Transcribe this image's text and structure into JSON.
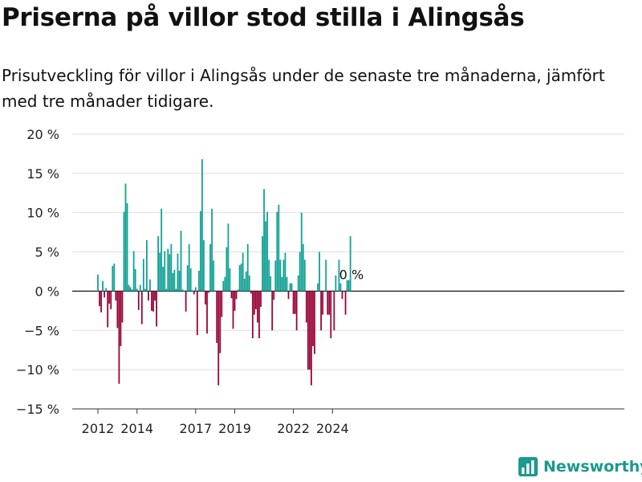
{
  "title": "Priserna på villor stod stilla i Alingsås",
  "subtitle": "Prisutveckling för villor i Alingsås under de senaste tre månaderna, jämfört med tre månader tidigare.",
  "brand": {
    "name": "Newsworthy"
  },
  "colors": {
    "positive": "#13a195",
    "negative": "#990538",
    "grid": "#dddddd",
    "zero_line": "#222222",
    "brand": "#1a9a8e"
  },
  "chart_data": {
    "type": "bar",
    "title": "Priserna på villor stod stilla i Alingsås",
    "subtitle": "Prisutveckling för villor i Alingsås under de senaste tre månaderna, jämfört med tre månader tidigare.",
    "ylim": [
      -15,
      20
    ],
    "yticks": [
      -15,
      -10,
      -5,
      0,
      5,
      10,
      15,
      20
    ],
    "ytick_labels": [
      "−15 %",
      "−10 %",
      "−5 %",
      "0 %",
      "5 %",
      "10 %",
      "15 %",
      "20 %"
    ],
    "x_start": "2012-01",
    "xticks": [
      "2012",
      "2014",
      "2017",
      "2019",
      "2022",
      "2024"
    ],
    "xtick_positions": [
      "2012-01",
      "2014-01",
      "2017-01",
      "2019-01",
      "2022-01",
      "2024-01"
    ],
    "grid": true,
    "last_label": "0 %",
    "values": [
      2.1,
      -1.9,
      -2.7,
      1.3,
      -0.8,
      0.4,
      -4.6,
      -1.6,
      -2.3,
      3.2,
      3.5,
      -1.2,
      -4.7,
      -11.8,
      -7.0,
      -4.0,
      10.1,
      13.7,
      11.2,
      0.8,
      0.5,
      0.2,
      5.1,
      2.8,
      0.3,
      -2.4,
      0.8,
      -4.2,
      4.1,
      0.3,
      6.5,
      -1.2,
      1.5,
      -2.5,
      -2.6,
      -1.2,
      -4.5,
      7.0,
      4.9,
      10.5,
      3.1,
      5.1,
      0.3,
      5.4,
      4.7,
      6.0,
      2.3,
      2.7,
      0.3,
      4.8,
      2.6,
      7.7,
      0.2,
      0.1,
      -2.6,
      3.3,
      6.0,
      2.9,
      0.1,
      -0.4,
      0.5,
      -5.6,
      2.6,
      10.2,
      16.8,
      6.5,
      -1.7,
      -5.4,
      -0.2,
      6.0,
      10.5,
      3.9,
      0.1,
      -6.6,
      -12.0,
      -7.9,
      -3.3,
      1.3,
      1.8,
      5.6,
      8.6,
      2.9,
      -0.9,
      -4.8,
      -2.5,
      -1.0,
      0.2,
      3.3,
      3.5,
      4.9,
      1.6,
      2.5,
      6.0,
      2.0,
      -0.3,
      -6.0,
      -3.0,
      -2.3,
      -4.0,
      -6.0,
      -2.0,
      7.0,
      13.0,
      8.9,
      10.1,
      4.0,
      1.9,
      -5.0,
      -1.1,
      3.9,
      10.1,
      11.0,
      4.0,
      1.8,
      4.0,
      4.9,
      1.8,
      -1.0,
      1.0,
      1.0,
      -2.9,
      -2.9,
      -5.0,
      2.0,
      5.0,
      10.0,
      6.0,
      4.0,
      -4.0,
      -10.0,
      -10.0,
      -12.0,
      -7.0,
      -8.0,
      0.0,
      1.0,
      5.0,
      -5.0,
      -3.0,
      0.0,
      4.0,
      -3.0,
      -3.0,
      -6.0,
      0.0,
      -5.0,
      2.0,
      0.0,
      4.0,
      1.0,
      -1.0,
      0.0,
      -3.0,
      1.4,
      1.4,
      7.0,
      0.0
    ]
  }
}
